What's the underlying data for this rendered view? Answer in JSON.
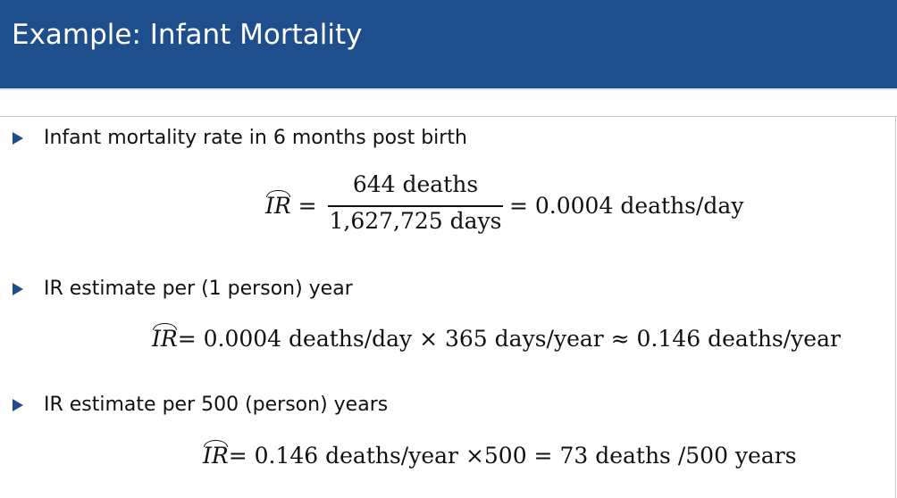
{
  "header": {
    "title": "Example: Infant Mortality",
    "background": "#1f4e8c"
  },
  "bullets": [
    {
      "text": "Infant mortality rate in 6 months post birth",
      "icon": "triangle-right-icon"
    },
    {
      "text": "IR estimate per (1 person) year",
      "icon": "triangle-right-icon"
    },
    {
      "text": "IR estimate per 500 (person) years",
      "icon": "triangle-right-icon"
    }
  ],
  "equations": {
    "symbol": "IR",
    "eq1": {
      "numerator": "644 deaths",
      "denominator": "1,627,725 days",
      "result": "= 0.0004  deaths/day"
    },
    "eq2": {
      "expression": "= 0.0004  deaths/day × 365 days/year ≈ 0.146 deaths/year"
    },
    "eq3": {
      "expression": "= 0.146  deaths/year ×500 = 73 deaths /500 years"
    }
  }
}
